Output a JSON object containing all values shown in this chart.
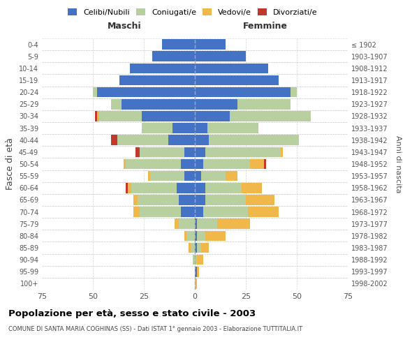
{
  "age_groups": [
    "0-4",
    "5-9",
    "10-14",
    "15-19",
    "20-24",
    "25-29",
    "30-34",
    "35-39",
    "40-44",
    "45-49",
    "50-54",
    "55-59",
    "60-64",
    "65-69",
    "70-74",
    "75-79",
    "80-84",
    "85-89",
    "90-94",
    "95-99",
    "100+"
  ],
  "birth_years": [
    "1998-2002",
    "1993-1997",
    "1988-1992",
    "1983-1987",
    "1978-1982",
    "1973-1977",
    "1968-1972",
    "1963-1967",
    "1958-1962",
    "1953-1957",
    "1948-1952",
    "1943-1947",
    "1938-1942",
    "1933-1937",
    "1928-1932",
    "1923-1927",
    "1918-1922",
    "1913-1917",
    "1908-1912",
    "1903-1907",
    "≤ 1902"
  ],
  "male": {
    "celibi": [
      16,
      21,
      32,
      37,
      48,
      36,
      26,
      11,
      13,
      5,
      7,
      5,
      9,
      8,
      7,
      0,
      0,
      0,
      0,
      0,
      0
    ],
    "coniugati": [
      0,
      0,
      0,
      0,
      2,
      5,
      21,
      15,
      25,
      22,
      27,
      17,
      22,
      20,
      20,
      8,
      4,
      2,
      1,
      0,
      0
    ],
    "vedovi": [
      0,
      0,
      0,
      0,
      0,
      0,
      1,
      0,
      0,
      0,
      1,
      1,
      2,
      2,
      3,
      2,
      1,
      1,
      0,
      0,
      0
    ],
    "divorziati": [
      0,
      0,
      0,
      0,
      0,
      0,
      1,
      0,
      3,
      2,
      0,
      0,
      1,
      0,
      0,
      0,
      0,
      0,
      0,
      0,
      0
    ]
  },
  "female": {
    "nubili": [
      15,
      25,
      36,
      41,
      47,
      21,
      17,
      6,
      7,
      5,
      4,
      3,
      5,
      5,
      4,
      1,
      1,
      1,
      0,
      1,
      0
    ],
    "coniugate": [
      0,
      0,
      0,
      0,
      3,
      26,
      40,
      25,
      44,
      37,
      23,
      12,
      18,
      20,
      22,
      10,
      4,
      2,
      1,
      0,
      0
    ],
    "vedove": [
      0,
      0,
      0,
      0,
      0,
      0,
      0,
      0,
      0,
      1,
      7,
      6,
      10,
      14,
      15,
      16,
      10,
      4,
      3,
      1,
      1
    ],
    "divorziate": [
      0,
      0,
      0,
      0,
      0,
      0,
      0,
      0,
      0,
      0,
      1,
      0,
      0,
      0,
      0,
      0,
      0,
      0,
      0,
      0,
      0
    ]
  },
  "colors": {
    "celibi": "#4472c4",
    "coniugati": "#b8cfa0",
    "vedovi": "#f0b84a",
    "divorziati": "#c0392b"
  },
  "xlim": 75,
  "title": "Popolazione per età, sesso e stato civile - 2003",
  "subtitle": "COMUNE DI SANTA MARIA COGHINAS (SS) - Dati ISTAT 1° gennaio 2003 - Elaborazione TUTTITALIA.IT",
  "ylabel": "Fasce di età",
  "ylabel_right": "Anni di nascita",
  "legend_labels": [
    "Celibi/Nubili",
    "Coniugati/e",
    "Vedovi/e",
    "Divorziati/e"
  ]
}
